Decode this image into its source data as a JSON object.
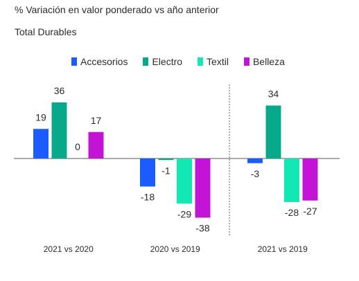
{
  "chart_data": {
    "type": "bar",
    "title": "% Variación en valor ponderado vs año anterior",
    "subtitle": "Total Durables",
    "categories": [
      "2021 vs 2020",
      "2020 vs 2019",
      "2021 vs 2019"
    ],
    "series": [
      {
        "name": "Accesorios",
        "color": "#1a5cff",
        "values": [
          19,
          -18,
          -3
        ]
      },
      {
        "name": "Electro",
        "color": "#06a98c",
        "values": [
          36,
          -1,
          34
        ]
      },
      {
        "name": "Textil",
        "color": "#12e8b4",
        "values": [
          0,
          -29,
          -28
        ]
      },
      {
        "name": "Belleza",
        "color": "#c313d6",
        "values": [
          17,
          -38,
          -27
        ]
      }
    ],
    "data_labels": [
      [
        "19",
        "36",
        "0",
        "17"
      ],
      [
        "-18",
        "-1",
        "-29",
        "-38"
      ],
      [
        "-3",
        "34",
        "-28",
        "-27"
      ]
    ],
    "ylim": [
      -45,
      45
    ],
    "legend": "top",
    "grid": false,
    "separator_after_category": 1
  }
}
